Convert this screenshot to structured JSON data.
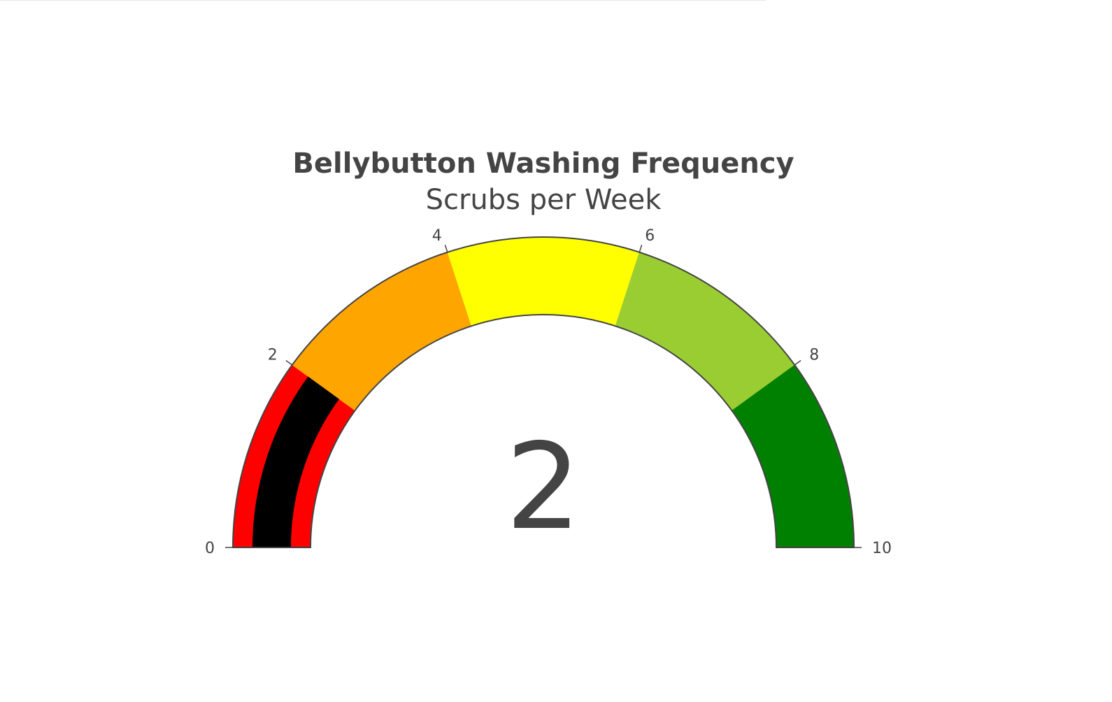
{
  "chart_data": {
    "type": "gauge",
    "title": "Bellybutton Washing Frequency",
    "subtitle": "Scrubs per Week",
    "value": 2,
    "value_label": "2",
    "range": [
      0,
      10
    ],
    "tick_values": [
      0,
      2,
      4,
      6,
      8,
      10
    ],
    "tick_labels": [
      "0",
      "2",
      "4",
      "6",
      "8",
      "10"
    ],
    "bar_color": "#000000",
    "steps": [
      {
        "range": [
          0,
          2
        ],
        "color": "#ff0000"
      },
      {
        "range": [
          2,
          4
        ],
        "color": "#ffa500"
      },
      {
        "range": [
          4,
          6
        ],
        "color": "#ffff00"
      },
      {
        "range": [
          6,
          8
        ],
        "color": "#9acd32"
      },
      {
        "range": [
          8,
          10
        ],
        "color": "#008000"
      }
    ],
    "border_color": "#444444"
  }
}
